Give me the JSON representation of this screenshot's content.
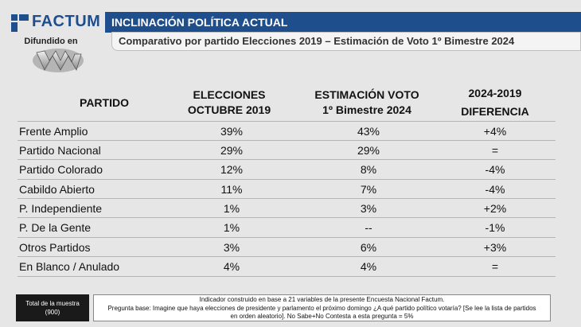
{
  "brand": {
    "name": "FACTUM",
    "sub": "Difundido en",
    "color": "#1f4e8c"
  },
  "header": {
    "title": "INCLINACIÓN POLÍTICA ACTUAL",
    "subtitle": "Comparativo por partido Elecciones 2019 – Estimación de Voto 1º Bimestre 2024"
  },
  "table": {
    "headers": [
      [
        "PARTIDO"
      ],
      [
        "ELECCIONES",
        "OCTUBRE 2019"
      ],
      [
        "ESTIMACIÓN VOTO",
        "1º Bimestre 2024"
      ],
      [
        "2024-2019",
        "DIFERENCIA"
      ]
    ],
    "rows": [
      [
        "Frente Amplio",
        "39%",
        "43%",
        "+4%"
      ],
      [
        "Partido Nacional",
        "29%",
        "29%",
        "="
      ],
      [
        "Partido Colorado",
        "12%",
        "8%",
        "-4%"
      ],
      [
        "Cabildo Abierto",
        "11%",
        "7%",
        "-4%"
      ],
      [
        "P. Independiente",
        "1%",
        "3%",
        "+2%"
      ],
      [
        "P. De la Gente",
        "1%",
        "--",
        "-1%"
      ],
      [
        "Otros Partidos",
        "3%",
        "6%",
        "+3%"
      ],
      [
        "En Blanco / Anulado",
        "4%",
        "4%",
        "="
      ]
    ]
  },
  "footer": {
    "sample_label": "Total de la muestra",
    "sample_value": "(900)",
    "note_lines": [
      "Indicador construido en base a 21 variables de la presente Encuesta Nacional Factum.",
      "Pregunta base: Imagine que haya elecciones de presidente y parlamento el próximo domingo ¿A qué partido político votaría? [Se lee la lista de partidos",
      "en orden aleatorio]. No Sabe+No Contesta a esta pregunta = 5%"
    ]
  }
}
